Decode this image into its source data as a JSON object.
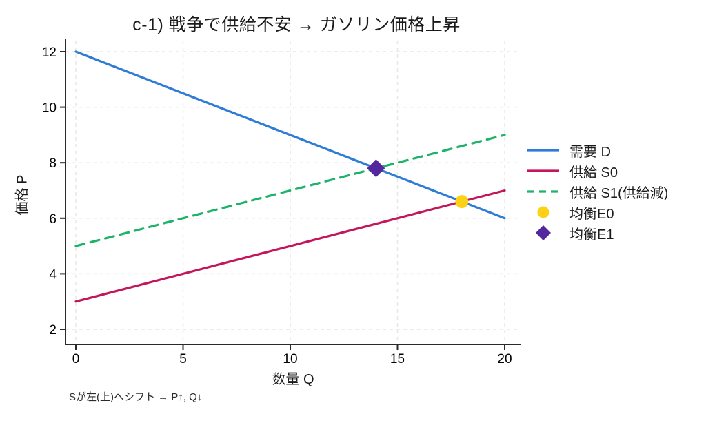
{
  "figure": {
    "note": "Sが左(上)へシフト → P↑, Q↓"
  },
  "chart_data": {
    "type": "line",
    "title": "c-1) 戦争で供給不安 → ガソリン価格上昇",
    "xlabel": "数量 Q",
    "ylabel": "価格 P",
    "xlim": [
      0,
      20
    ],
    "ylim": [
      2,
      12
    ],
    "xticks": [
      0,
      5,
      10,
      15,
      20
    ],
    "yticks": [
      2,
      4,
      6,
      8,
      10,
      12
    ],
    "grid": true,
    "legend_position": "right",
    "series": [
      {
        "id": "demand-d",
        "name": "需要 D",
        "kind": "line",
        "dash": "solid",
        "color": "#2e7cd6",
        "x": [
          0,
          20
        ],
        "y": [
          12,
          6
        ]
      },
      {
        "id": "supply-s0",
        "name": "供給 S0",
        "kind": "line",
        "dash": "solid",
        "color": "#c2185b",
        "x": [
          0,
          20
        ],
        "y": [
          3,
          7
        ]
      },
      {
        "id": "supply-s1",
        "name": "供給 S1(供給減)",
        "kind": "line",
        "dash": "dashed",
        "color": "#1db36b",
        "x": [
          0,
          20
        ],
        "y": [
          5,
          9
        ]
      },
      {
        "id": "equilibrium-e0",
        "name": "均衡E0",
        "kind": "point",
        "marker": "circle",
        "color": "#fcd116",
        "x": [
          18
        ],
        "y": [
          6.6
        ]
      },
      {
        "id": "equilibrium-e1",
        "name": "均衡E1",
        "kind": "point",
        "marker": "diamond",
        "color": "#53279e",
        "x": [
          14
        ],
        "y": [
          7.8
        ]
      }
    ],
    "annotation": "Sが左(上)へシフト → P↑, Q↓",
    "colors": {
      "axis": "#2a2a2a",
      "grid": "#e7e7e7",
      "text": "#1a1a1a"
    }
  }
}
